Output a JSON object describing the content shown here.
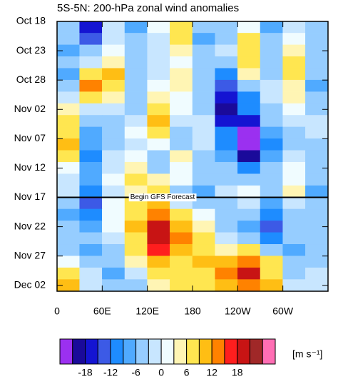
{
  "chart_data": {
    "type": "heatmap",
    "title": "5S-5N: 200-hPa zonal wind anomalies",
    "x": [
      15,
      45,
      75,
      105,
      135,
      165,
      195,
      225,
      255,
      285,
      315,
      345
    ],
    "y": [
      1,
      3,
      5,
      7,
      9,
      11,
      13,
      15,
      17,
      19,
      21,
      23,
      25,
      27,
      29,
      31,
      33,
      35,
      37,
      39,
      41,
      43,
      45
    ],
    "values": [
      [
        -6,
        -18,
        -3,
        -8,
        0,
        8,
        -6,
        -4,
        2,
        -8,
        -2,
        -4
      ],
      [
        -6,
        -15,
        -2,
        -6,
        -2,
        6,
        -8,
        -4,
        6,
        -6,
        0,
        -4
      ],
      [
        -8,
        -6,
        0,
        -4,
        -2,
        3,
        -6,
        -2,
        8,
        -4,
        4,
        -6
      ],
      [
        -6,
        -3,
        4,
        -6,
        -3,
        2,
        -4,
        -6,
        6,
        -6,
        8,
        -4
      ],
      [
        -8,
        6,
        10,
        -6,
        -2,
        3,
        -6,
        -10,
        3,
        -6,
        6,
        -6
      ],
      [
        -6,
        12,
        8,
        -4,
        0,
        4,
        -4,
        -14,
        -6,
        -3,
        5,
        -8
      ],
      [
        -3,
        8,
        4,
        -6,
        4,
        2,
        -6,
        -18,
        -10,
        -2,
        3,
        -6
      ],
      [
        4,
        -2,
        -3,
        -4,
        8,
        0,
        -4,
        -20,
        -12,
        -4,
        2,
        -4
      ],
      [
        6,
        -6,
        -4,
        -2,
        10,
        -3,
        -3,
        -16,
        -18,
        -6,
        -2,
        -3
      ],
      [
        8,
        -8,
        -6,
        0,
        6,
        -6,
        -2,
        -12,
        -22,
        -8,
        -4,
        -3
      ],
      [
        10,
        -8,
        -4,
        -2,
        0,
        -4,
        -3,
        -10,
        -22,
        -10,
        -4,
        -4
      ],
      [
        8,
        -10,
        -3,
        2,
        -6,
        3,
        -4,
        -8,
        -20,
        -8,
        -3,
        -6
      ],
      [
        2,
        -8,
        -2,
        4,
        -4,
        2,
        -6,
        -6,
        -12,
        -6,
        0,
        -4
      ],
      [
        -2,
        -8,
        0,
        6,
        3,
        0,
        -6,
        -4,
        -6,
        -4,
        2,
        -6
      ],
      [
        -2,
        -10,
        -2,
        4,
        8,
        -4,
        -8,
        -2,
        2,
        -4,
        4,
        -8
      ],
      [
        -6,
        -14,
        0,
        6,
        10,
        -2,
        -4,
        -4,
        -2,
        -8,
        -2,
        -6
      ],
      [
        -8,
        -10,
        2,
        8,
        14,
        6,
        2,
        -6,
        -6,
        -12,
        -4,
        -6
      ],
      [
        -6,
        -8,
        0,
        10,
        18,
        10,
        4,
        -6,
        -8,
        -14,
        -6,
        -4
      ],
      [
        -4,
        -6,
        -2,
        8,
        20,
        12,
        6,
        -2,
        -4,
        -10,
        -6,
        -4
      ],
      [
        -4,
        -8,
        -4,
        6,
        16,
        10,
        8,
        4,
        6,
        -4,
        -8,
        -6
      ],
      [
        0,
        -6,
        -6,
        4,
        10,
        8,
        10,
        10,
        14,
        6,
        -6,
        -4
      ],
      [
        6,
        -3,
        -8,
        -2,
        6,
        8,
        8,
        12,
        18,
        8,
        -4,
        -3
      ],
      [
        10,
        -2,
        -6,
        -4,
        4,
        6,
        8,
        10,
        12,
        10,
        -2,
        -3
      ]
    ],
    "xlim": [
      0,
      360
    ],
    "xticks": [
      0,
      {
        "value": 60,
        "label": "60E"
      },
      {
        "value": 120,
        "label": "120E"
      },
      180,
      {
        "value": 240,
        "label": "120W"
      },
      {
        "value": 300,
        "label": "60W"
      }
    ],
    "ylim": [
      0,
      46
    ],
    "yticks": [
      {
        "value": 0,
        "label": "Oct 18"
      },
      {
        "value": 5,
        "label": "Oct 23"
      },
      {
        "value": 10,
        "label": "Oct 28"
      },
      {
        "value": 15,
        "label": "Nov 02"
      },
      {
        "value": 20,
        "label": "Nov 07"
      },
      {
        "value": 25,
        "label": "Nov 12"
      },
      {
        "value": 30,
        "label": "Nov 17"
      },
      {
        "value": 35,
        "label": "Nov 22"
      },
      {
        "value": 40,
        "label": "Nov 27"
      },
      {
        "value": 45,
        "label": "Dec 02"
      }
    ],
    "annotation": {
      "text": "Begin GFS Forecast",
      "y": 30
    },
    "colorbar": {
      "levels": [
        -21,
        -18,
        -15,
        -12,
        -9,
        -6,
        -3,
        0,
        3,
        6,
        9,
        12,
        15,
        18,
        21
      ],
      "colors": [
        "#9b30f0",
        "#1a0a9a",
        "#1414d2",
        "#3c5ae6",
        "#1e8cff",
        "#50aaff",
        "#96cdff",
        "#c8e6ff",
        "#f0fcff",
        "#fff5b4",
        "#ffe650",
        "#ffbe14",
        "#ff8200",
        "#ff1e1e",
        "#c81414",
        "#a02828",
        "#ff6eb4"
      ],
      "ticks": [
        -18,
        -12,
        -6,
        0,
        6,
        12,
        18
      ],
      "label": "[m s⁻¹]"
    }
  }
}
